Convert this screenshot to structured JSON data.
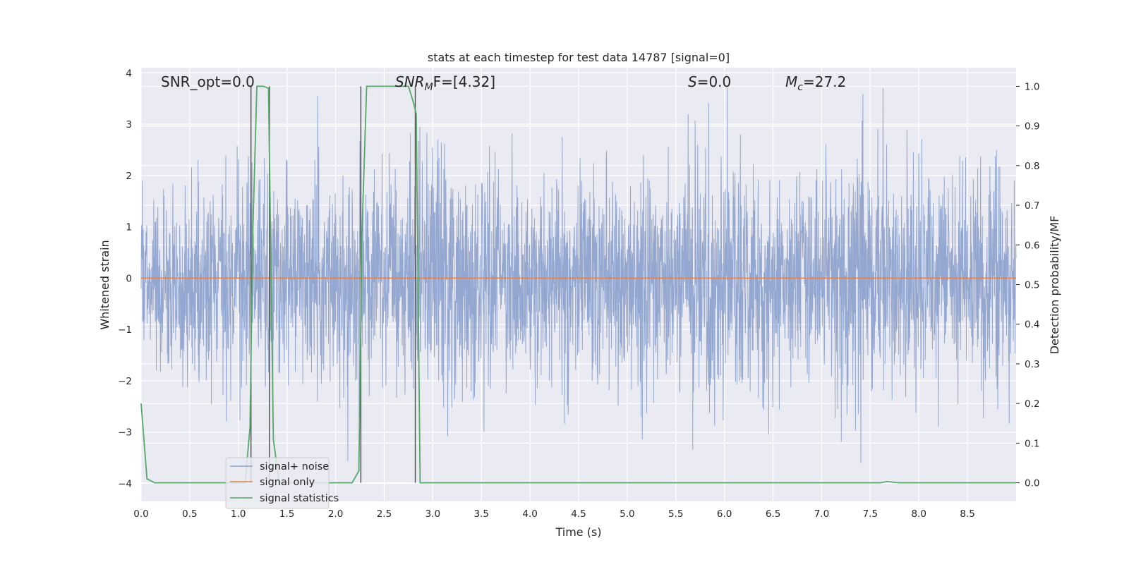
{
  "chart_data": {
    "type": "line",
    "title": "stats at each timestep for test data 14787 [signal=0]",
    "xlabel": "Time (s)",
    "ylabel": "Whitened strain",
    "ylabel_right": "Detection probability/MF",
    "xlim": [
      0,
      9.0
    ],
    "ylim": [
      -4.35,
      4.1
    ],
    "ylim_right": [
      -0.047,
      1.047
    ],
    "x_ticks": [
      "0.0",
      "0.5",
      "1.0",
      "1.5",
      "2.0",
      "2.5",
      "3.0",
      "3.5",
      "4.0",
      "4.5",
      "5.0",
      "5.5",
      "6.0",
      "6.5",
      "7.0",
      "7.5",
      "8.0",
      "8.5"
    ],
    "y_ticks": [
      "4",
      "3",
      "2",
      "1",
      "0",
      "−1",
      "−2",
      "−3",
      "−4"
    ],
    "y_ticks_right": [
      "1.0",
      "0.9",
      "0.8",
      "0.7",
      "0.6",
      "0.5",
      "0.4",
      "0.3",
      "0.2",
      "0.1",
      "0.0"
    ],
    "grid": true,
    "legend_position": "lower-left",
    "annotations": {
      "snr_opt": "SNR_opt=0.0",
      "snr_mf_a": "SNR",
      "snr_mf_sub": "M",
      "snr_mf_b": "F=[4.32]",
      "s_a": "S",
      "s_b": "=0.0",
      "mc_a": "M",
      "mc_sub": "c",
      "mc_b": "=27.2"
    },
    "series": [
      {
        "name": "signal+ noise",
        "color": "#8ea3cf",
        "description_values": "whitened strain noise, approx. amplitude range -3.6 to 3.7",
        "amplitude_envelope": [
          1.9,
          2.4,
          2.1,
          2.3,
          2.6,
          2.2,
          2.5,
          2.8,
          2.4,
          2.2,
          2.6,
          2.3,
          2.7,
          2.5,
          2.2,
          2.4,
          2.9,
          2.5,
          2.3,
          2.6
        ]
      },
      {
        "name": "signal only",
        "color": "#dd8452",
        "x": [
          0,
          9.0
        ],
        "y": [
          0,
          0
        ]
      },
      {
        "name": "signal statistics",
        "color": "#55a868",
        "axis": "right",
        "x": [
          0.0,
          0.06,
          0.14,
          0.3,
          0.6,
          1.0,
          1.07,
          1.12,
          1.15,
          1.19,
          1.26,
          1.31,
          1.36,
          1.42,
          1.5,
          2.0,
          2.17,
          2.24,
          2.27,
          2.32,
          2.5,
          2.75,
          2.8,
          2.83,
          2.87,
          2.95,
          3.5,
          5.0,
          7.0,
          7.6,
          7.67,
          7.8,
          8.2,
          8.5,
          9.0
        ],
        "y": [
          0.2,
          0.01,
          0.0,
          0.0,
          0.0,
          0.0,
          0.0,
          0.14,
          0.64,
          1.0,
          1.0,
          0.995,
          0.11,
          0.0,
          0.0,
          0.0,
          0.0,
          0.03,
          0.62,
          1.0,
          1.0,
          1.0,
          0.96,
          0.93,
          0.0,
          0.0,
          0.0,
          0.0,
          0.0,
          0.0,
          0.003,
          0.0,
          0.0,
          0.0,
          0.0
        ]
      }
    ],
    "vertical_markers_x": [
      1.13,
      1.32,
      2.26,
      2.82
    ],
    "vertical_marker_color": "#555555"
  }
}
